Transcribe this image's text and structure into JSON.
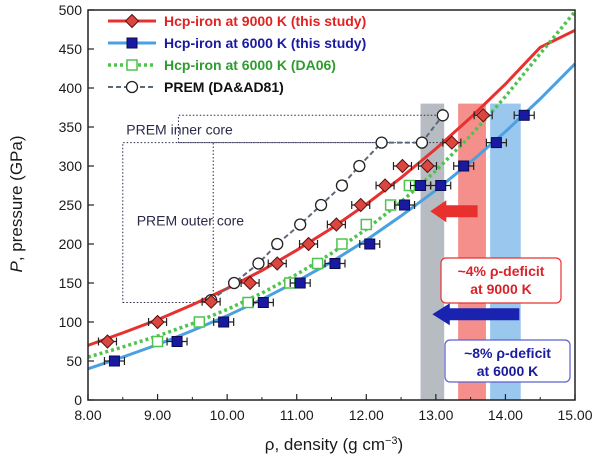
{
  "chart_data": {
    "type": "scatter",
    "xlabel_main": "ρ, density (g cm",
    "xlabel_sup": "−3",
    "xlabel_tail": ")",
    "ylabel_italic": "P",
    "ylabel_rest": ", pressure (GPa)",
    "xlim": [
      8.0,
      15.0
    ],
    "ylim": [
      0,
      500
    ],
    "xticks": [
      "8.00",
      "9.00",
      "10.00",
      "11.00",
      "12.00",
      "13.00",
      "14.00",
      "15.00"
    ],
    "yticks": [
      "0",
      "50",
      "100",
      "150",
      "200",
      "250",
      "300",
      "350",
      "400",
      "450",
      "500"
    ],
    "grid": false,
    "legend_position": "top-left",
    "series": [
      {
        "name": "Hcp-iron at 9000 K (this study)",
        "color": "#e8312f",
        "marker_fill": "#d9473f",
        "marker": "diamond",
        "text_color": "#e02222",
        "curve": [
          [
            8.0,
            70
          ],
          [
            8.5,
            86
          ],
          [
            9.0,
            103
          ],
          [
            9.5,
            122
          ],
          [
            10.0,
            143
          ],
          [
            10.5,
            166
          ],
          [
            11.0,
            192
          ],
          [
            11.5,
            220
          ],
          [
            12.0,
            251
          ],
          [
            12.5,
            285
          ],
          [
            13.0,
            322
          ],
          [
            13.5,
            362
          ],
          [
            14.0,
            405
          ],
          [
            14.5,
            452
          ],
          [
            15.0,
            474
          ]
        ],
        "points": [
          [
            8.28,
            75
          ],
          [
            9.0,
            100
          ],
          [
            9.77,
            126
          ],
          [
            10.33,
            150
          ],
          [
            10.72,
            175
          ],
          [
            11.17,
            200
          ],
          [
            11.57,
            225
          ],
          [
            11.92,
            250
          ],
          [
            12.27,
            275
          ],
          [
            12.52,
            300
          ],
          [
            12.88,
            300
          ],
          [
            13.23,
            330
          ],
          [
            13.68,
            365
          ]
        ]
      },
      {
        "name": "Hcp-iron at 6000 K (this study)",
        "color": "#4aa0e0",
        "marker_fill": "#1a1aa0",
        "marker": "square",
        "text_color": "#1a1aa0",
        "curve": [
          [
            8.0,
            40
          ],
          [
            8.5,
            55
          ],
          [
            9.0,
            71
          ],
          [
            9.5,
            89
          ],
          [
            10.0,
            108
          ],
          [
            10.5,
            129
          ],
          [
            11.0,
            152
          ],
          [
            11.5,
            177
          ],
          [
            12.0,
            205
          ],
          [
            12.5,
            236
          ],
          [
            13.0,
            269
          ],
          [
            13.5,
            305
          ],
          [
            14.0,
            344
          ],
          [
            14.5,
            386
          ],
          [
            15.0,
            431
          ]
        ],
        "points": [
          [
            8.38,
            50
          ],
          [
            9.28,
            75
          ],
          [
            9.95,
            100
          ],
          [
            10.52,
            125
          ],
          [
            11.05,
            150
          ],
          [
            11.55,
            175
          ],
          [
            12.05,
            200
          ],
          [
            12.55,
            250
          ],
          [
            12.78,
            275
          ],
          [
            13.07,
            275
          ],
          [
            13.4,
            300
          ],
          [
            13.87,
            330
          ],
          [
            14.27,
            365
          ]
        ]
      },
      {
        "name": "Hcp-iron at 6000 K (DA06)",
        "color": "#4ec44e",
        "marker_fill": "#ffffff",
        "marker": "open-square",
        "text_color": "#2e9c2e",
        "curve": [
          [
            8.0,
            55
          ],
          [
            8.5,
            68
          ],
          [
            9.0,
            82
          ],
          [
            9.5,
            98
          ],
          [
            10.0,
            116
          ],
          [
            10.5,
            137
          ],
          [
            11.0,
            161
          ],
          [
            11.5,
            188
          ],
          [
            12.0,
            219
          ],
          [
            12.5,
            254
          ],
          [
            13.0,
            294
          ],
          [
            13.5,
            339
          ],
          [
            14.0,
            389
          ],
          [
            14.5,
            444
          ],
          [
            15.0,
            498
          ]
        ],
        "points": [
          [
            9.0,
            75
          ],
          [
            9.6,
            100
          ],
          [
            10.3,
            125
          ],
          [
            10.9,
            150
          ],
          [
            11.3,
            175
          ],
          [
            11.65,
            200
          ],
          [
            12.0,
            225
          ],
          [
            12.35,
            250
          ],
          [
            12.62,
            275
          ]
        ]
      },
      {
        "name": "PREM (DA&AD81)",
        "color": "#5a6a7a",
        "marker_fill": "#ffffff",
        "marker": "open-circle",
        "text_color": "#111111",
        "points": [
          [
            9.77,
            128
          ],
          [
            10.1,
            150
          ],
          [
            10.45,
            175
          ],
          [
            10.72,
            200
          ],
          [
            11.05,
            225
          ],
          [
            11.35,
            250
          ],
          [
            11.65,
            275
          ],
          [
            11.9,
            300
          ],
          [
            12.22,
            330
          ],
          [
            12.8,
            330
          ],
          [
            13.1,
            365
          ]
        ]
      }
    ],
    "bands": [
      {
        "x": [
          12.78,
          13.12
        ],
        "color": "#9ea6ad",
        "opacity": 0.75
      },
      {
        "x": [
          13.32,
          13.72
        ],
        "color": "#f26a66",
        "opacity": 0.75
      },
      {
        "x": [
          13.78,
          14.22
        ],
        "color": "#78b4e8",
        "opacity": 0.75
      }
    ],
    "annotations": {
      "inner_core_label": "PREM inner core",
      "outer_core_label": "PREM outer core",
      "deficit_9000_line1": "~4% ρ-deficit",
      "deficit_9000_line2": "at 9000 K",
      "deficit_6000_line1": "~8% ρ-deficit",
      "deficit_6000_line2": "at 6000 K"
    }
  }
}
